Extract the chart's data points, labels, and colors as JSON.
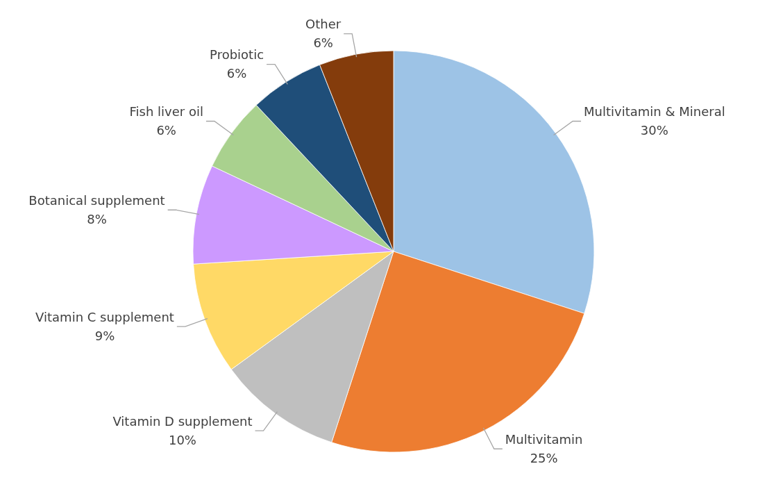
{
  "chart_data": {
    "type": "pie",
    "categories": [
      "Multivitamin & Mineral",
      "Multivitamin",
      "Vitamin D supplement",
      "Vitamin C supplement",
      "Botanical supplement",
      "Fish liver oil",
      "Probiotic",
      "Other"
    ],
    "values": [
      30,
      25,
      10,
      9,
      8,
      6,
      6,
      6
    ],
    "value_labels": [
      "30%",
      "25%",
      "10%",
      "9%",
      "8%",
      "6%",
      "6%",
      "6%"
    ],
    "colors": [
      "#9dc3e6",
      "#ed7d31",
      "#bfbfbf",
      "#ffd966",
      "#cc99ff",
      "#a9d18e",
      "#1f4e79",
      "#843c0c"
    ]
  }
}
